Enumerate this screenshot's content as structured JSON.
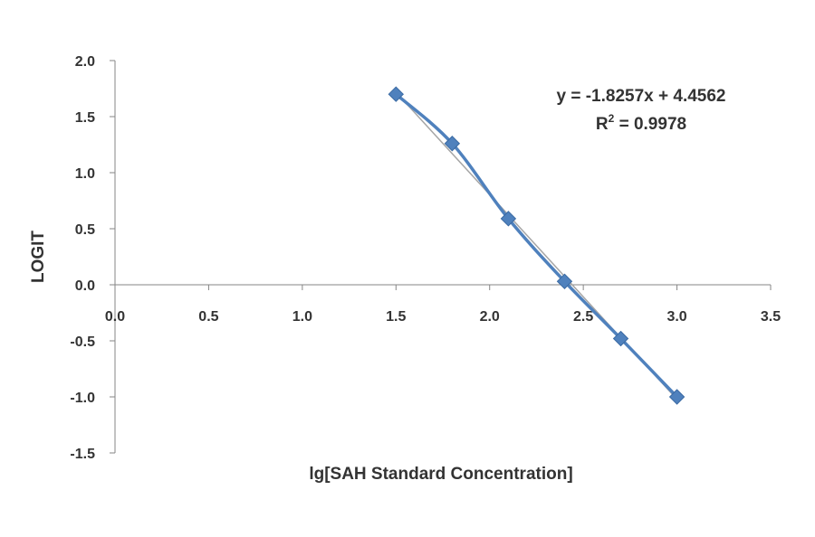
{
  "chart_data": {
    "type": "scatter",
    "title": "",
    "xlabel": "lg[SAH Standard Concentration]",
    "ylabel": "LOGIT",
    "xlim": [
      0,
      3.5
    ],
    "ylim": [
      -1.5,
      2.0
    ],
    "xticks": [
      "0.0",
      "0.5",
      "1.0",
      "1.5",
      "2.0",
      "2.5",
      "3.0",
      "3.5"
    ],
    "yticks": [
      "2.0",
      "1.5",
      "1.0",
      "0.5",
      "0.0",
      "-0.5",
      "-1.0",
      "-1.5"
    ],
    "grid": false,
    "legend": "none",
    "series": [
      {
        "x": [
          1.5,
          1.8,
          2.1,
          2.4,
          2.7,
          3.0
        ],
        "y": [
          1.7,
          1.26,
          0.59,
          0.03,
          -0.48,
          -1.0
        ],
        "color": "#4f81bd",
        "marker": "diamond",
        "line": "smooth"
      }
    ],
    "trendline": {
      "slope": -1.8257,
      "intercept": 4.4562,
      "color": "#a6a6a6"
    },
    "annotations": {
      "equation": "y = -1.8257x + 4.4562",
      "r_squared_label": "R",
      "r_squared_sup": "2",
      "r_squared_value": " = 0.9978"
    }
  }
}
